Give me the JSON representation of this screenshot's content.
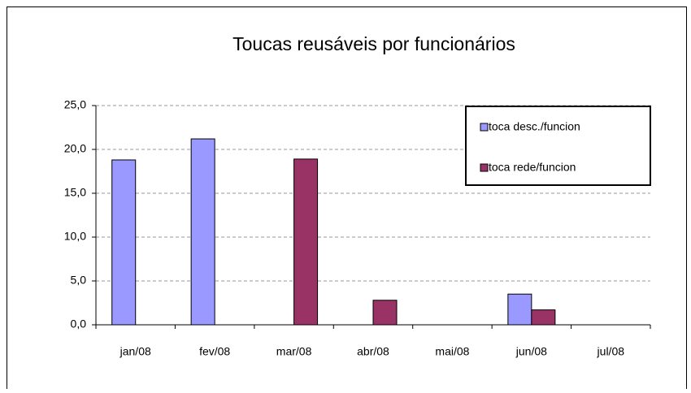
{
  "chart_data": {
    "type": "bar",
    "title": "Toucas reusáveis por funcionários",
    "categories": [
      "jan/08",
      "fev/08",
      "mar/08",
      "abr/08",
      "mai/08",
      "jun/08",
      "jul/08"
    ],
    "series": [
      {
        "name": "toca desc./funcion",
        "color": "#9999ff",
        "values": [
          18.8,
          21.2,
          null,
          null,
          null,
          3.5,
          null
        ]
      },
      {
        "name": "toca rede/funcion",
        "color": "#993366",
        "values": [
          null,
          null,
          18.9,
          2.8,
          null,
          1.7,
          null
        ]
      }
    ],
    "ylim": [
      0,
      25
    ],
    "yticks": [
      {
        "value": 0,
        "label": "0,0"
      },
      {
        "value": 5,
        "label": "5,0"
      },
      {
        "value": 10,
        "label": "10,0"
      },
      {
        "value": 15,
        "label": "15,0"
      },
      {
        "value": 20,
        "label": "20,0"
      },
      {
        "value": 25,
        "label": "25,0"
      }
    ],
    "grid": true,
    "legend": "top-right"
  }
}
